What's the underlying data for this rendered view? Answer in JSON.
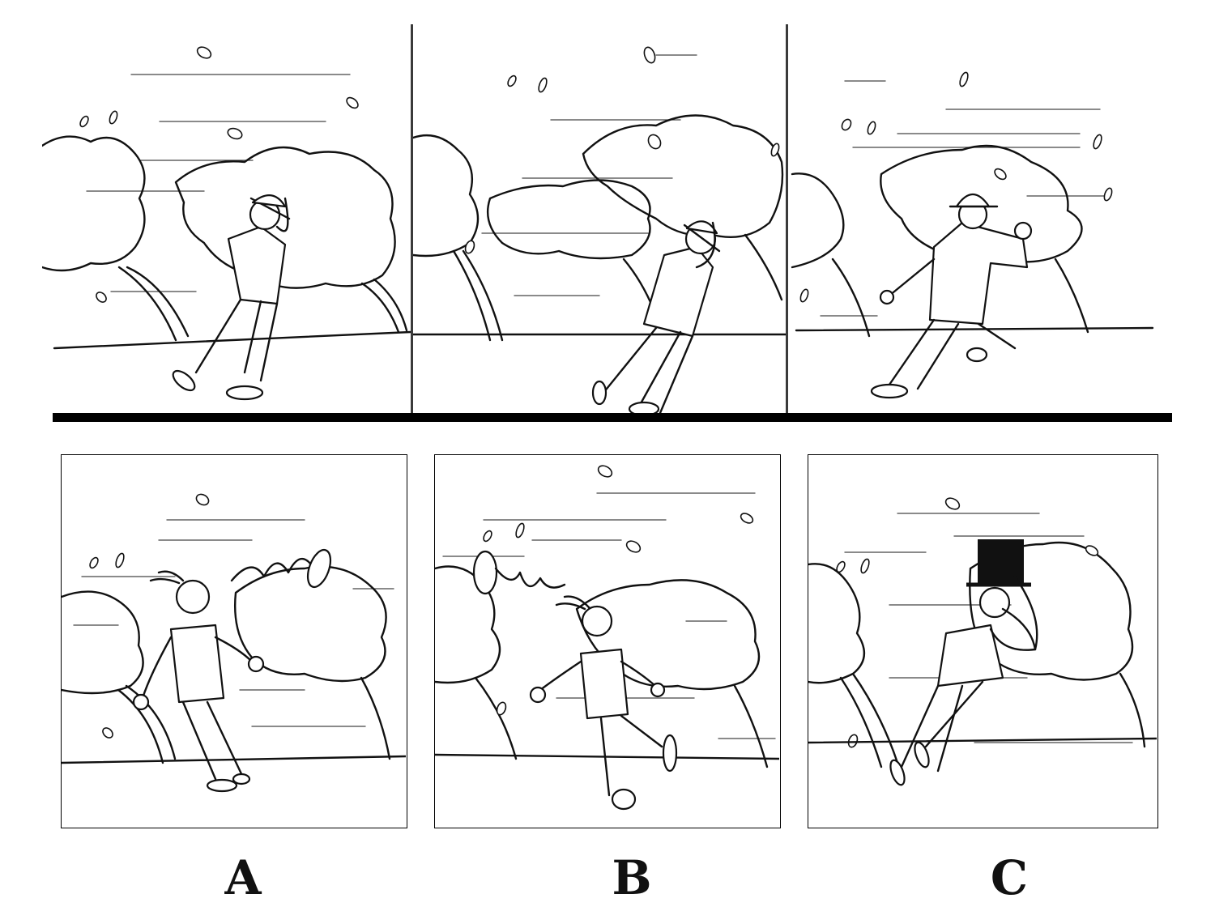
{
  "figure": {
    "sequence_panels": [
      {
        "id": "panel-1",
        "scene": "man-holding-hat-walking-into-wind"
      },
      {
        "id": "panel-2",
        "scene": "man-holding-hat-leaning-into-wind"
      },
      {
        "id": "panel-3",
        "scene": "man-striding-with-hat-on"
      }
    ],
    "options": [
      {
        "label": "A",
        "scene": "man-smiling-hat-blown-away"
      },
      {
        "label": "B",
        "scene": "man-walking-hat-blown-away"
      },
      {
        "label": "C",
        "scene": "man-holding-top-hat-in-wind"
      }
    ]
  },
  "colors": {
    "ink": "#111111",
    "paper": "#ffffff",
    "bar": "#000000"
  }
}
